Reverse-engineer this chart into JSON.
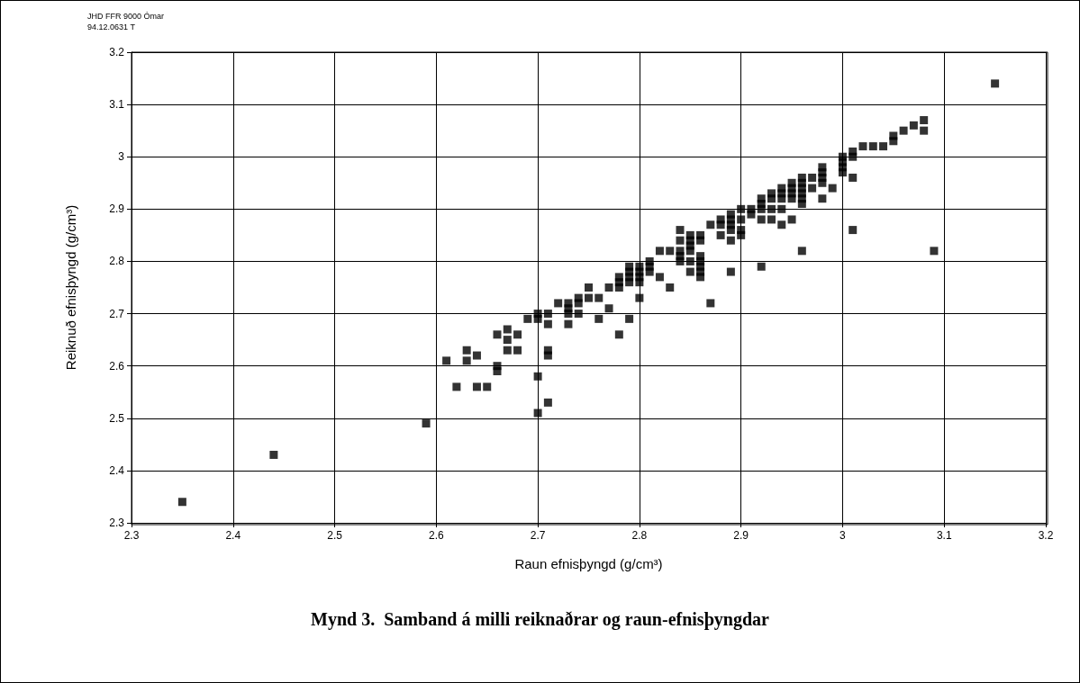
{
  "chart_data": {
    "type": "scatter",
    "title": "Mynd 3.  Samband á milli reiknaðrar og raun-efnisþyngdar",
    "xlabel": "Raun efnisþyngd (g/cm³)",
    "ylabel": "Reiknuð efnisþyngd (g/cm³)",
    "annotations": [
      "JHD FFR 9000 Ómar",
      "94.12.0631 T"
    ],
    "xlim": [
      2.3,
      3.2
    ],
    "xticks": [
      2.3,
      2.4,
      2.5,
      2.6,
      2.7,
      2.8,
      2.9,
      3,
      3.1,
      3.2
    ],
    "ylim": [
      2.3,
      3.2
    ],
    "yticks": [
      2.3,
      2.4,
      2.5,
      2.6,
      2.7,
      2.8,
      2.9,
      3,
      3.1,
      3.2
    ],
    "grid": true,
    "marker": "square",
    "series": [
      {
        "color": "#000000",
        "x": [
          2.35,
          2.44,
          2.59,
          2.61,
          2.62,
          2.63,
          2.63,
          2.64,
          2.64,
          2.65,
          2.66,
          2.66,
          2.66,
          2.67,
          2.67,
          2.67,
          2.68,
          2.68,
          2.69,
          2.7,
          2.7,
          2.7,
          2.7,
          2.71,
          2.71,
          2.71,
          2.71,
          2.71,
          2.72,
          2.73,
          2.73,
          2.73,
          2.73,
          2.74,
          2.74,
          2.74,
          2.75,
          2.75,
          2.76,
          2.76,
          2.77,
          2.77,
          2.78,
          2.78,
          2.78,
          2.78,
          2.79,
          2.79,
          2.79,
          2.79,
          2.79,
          2.8,
          2.8,
          2.8,
          2.8,
          2.8,
          2.81,
          2.81,
          2.81,
          2.82,
          2.82,
          2.83,
          2.83,
          2.84,
          2.84,
          2.84,
          2.84,
          2.84,
          2.85,
          2.85,
          2.85,
          2.85,
          2.85,
          2.85,
          2.86,
          2.86,
          2.86,
          2.86,
          2.86,
          2.86,
          2.86,
          2.87,
          2.87,
          2.88,
          2.88,
          2.88,
          2.89,
          2.89,
          2.89,
          2.89,
          2.89,
          2.89,
          2.9,
          2.9,
          2.9,
          2.9,
          2.91,
          2.91,
          2.92,
          2.92,
          2.92,
          2.92,
          2.92,
          2.93,
          2.93,
          2.93,
          2.93,
          2.94,
          2.94,
          2.94,
          2.94,
          2.94,
          2.95,
          2.95,
          2.95,
          2.95,
          2.95,
          2.96,
          2.96,
          2.96,
          2.96,
          2.96,
          2.96,
          2.96,
          2.97,
          2.97,
          2.98,
          2.98,
          2.98,
          2.98,
          2.98,
          2.99,
          3,
          3,
          3,
          3,
          3.01,
          3.01,
          3.01,
          3.01,
          3.02,
          3.03,
          3.04,
          3.05,
          3.05,
          3.06,
          3.07,
          3.08,
          3.08,
          3.09,
          3.15
        ],
        "values": [
          2.34,
          2.43,
          2.49,
          2.61,
          2.56,
          2.63,
          2.61,
          2.62,
          2.56,
          2.56,
          2.66,
          2.6,
          2.59,
          2.67,
          2.65,
          2.63,
          2.66,
          2.63,
          2.69,
          2.7,
          2.69,
          2.58,
          2.51,
          2.7,
          2.68,
          2.63,
          2.62,
          2.53,
          2.72,
          2.72,
          2.71,
          2.7,
          2.68,
          2.73,
          2.72,
          2.7,
          2.75,
          2.73,
          2.73,
          2.69,
          2.75,
          2.71,
          2.77,
          2.76,
          2.75,
          2.66,
          2.79,
          2.78,
          2.77,
          2.76,
          2.69,
          2.79,
          2.78,
          2.77,
          2.76,
          2.73,
          2.8,
          2.79,
          2.78,
          2.82,
          2.77,
          2.82,
          2.75,
          2.86,
          2.84,
          2.82,
          2.81,
          2.8,
          2.85,
          2.84,
          2.83,
          2.82,
          2.8,
          2.78,
          2.85,
          2.84,
          2.81,
          2.8,
          2.79,
          2.78,
          2.77,
          2.87,
          2.72,
          2.88,
          2.87,
          2.85,
          2.89,
          2.88,
          2.87,
          2.86,
          2.84,
          2.78,
          2.9,
          2.88,
          2.86,
          2.85,
          2.89,
          2.9,
          2.92,
          2.91,
          2.9,
          2.88,
          2.79,
          2.93,
          2.92,
          2.9,
          2.88,
          2.94,
          2.93,
          2.92,
          2.9,
          2.87,
          2.95,
          2.94,
          2.93,
          2.92,
          2.88,
          2.96,
          2.95,
          2.94,
          2.93,
          2.92,
          2.91,
          2.82,
          2.96,
          2.94,
          2.98,
          2.97,
          2.96,
          2.95,
          2.92,
          2.94,
          3,
          2.99,
          2.98,
          2.97,
          3.01,
          3,
          2.96,
          2.86,
          3.02,
          3.02,
          3.02,
          3.04,
          3.03,
          3.05,
          3.06,
          3.07,
          3.05,
          2.82,
          3.14
        ]
      }
    ]
  }
}
